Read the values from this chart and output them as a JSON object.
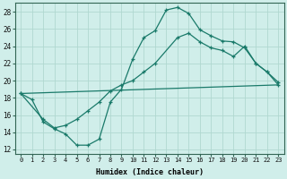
{
  "xlabel": "Humidex (Indice chaleur)",
  "xlim": [
    -0.5,
    23.5
  ],
  "ylim": [
    11.5,
    29.0
  ],
  "xticks": [
    0,
    1,
    2,
    3,
    4,
    5,
    6,
    7,
    8,
    9,
    10,
    11,
    12,
    13,
    14,
    15,
    16,
    17,
    18,
    19,
    20,
    21,
    22,
    23
  ],
  "yticks": [
    12,
    14,
    16,
    18,
    20,
    22,
    24,
    26,
    28
  ],
  "bg_color": "#d0eeea",
  "line_color": "#1a7a6a",
  "grid_color": "#b0d8d0",
  "line1_x": [
    0,
    1,
    2,
    3,
    4,
    5,
    6,
    7,
    8,
    9,
    10,
    11,
    12,
    13,
    14,
    15,
    16,
    17,
    18,
    19,
    20,
    21,
    22,
    23
  ],
  "line1_y": [
    18.5,
    17.8,
    15.2,
    14.4,
    13.8,
    12.5,
    12.5,
    13.2,
    17.5,
    19.0,
    22.5,
    25.0,
    25.8,
    28.2,
    28.5,
    27.8,
    25.9,
    25.2,
    24.6,
    24.5,
    23.8,
    22.0,
    21.0,
    19.8
  ],
  "line2_x": [
    0,
    2,
    3,
    4,
    5,
    6,
    7,
    8,
    9,
    10,
    11,
    12,
    14,
    15,
    16,
    17,
    18,
    19,
    20,
    21,
    22,
    23
  ],
  "line2_y": [
    18.5,
    15.5,
    14.5,
    14.8,
    15.5,
    16.5,
    17.5,
    18.8,
    19.5,
    20.0,
    21.0,
    22.0,
    25.0,
    25.5,
    24.5,
    23.8,
    23.5,
    22.8,
    24.0,
    22.0,
    21.0,
    19.5
  ],
  "line3_x": [
    0,
    23
  ],
  "line3_y": [
    18.5,
    19.5
  ]
}
